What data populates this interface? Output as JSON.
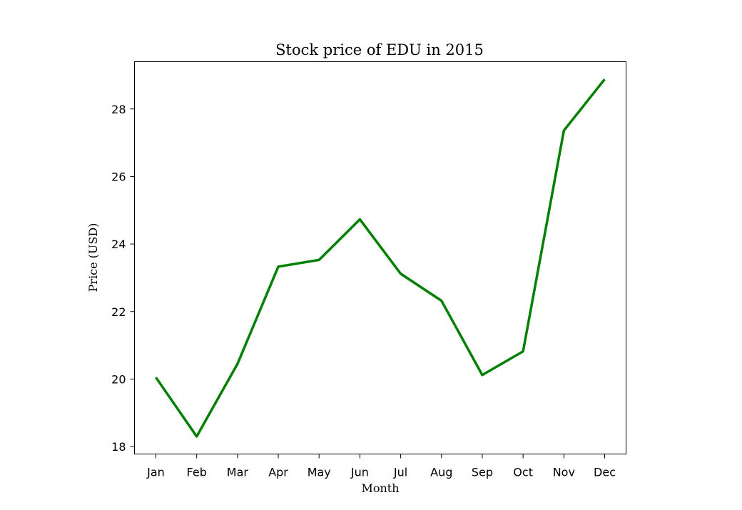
{
  "chart_data": {
    "type": "line",
    "title": "Stock price of EDU in 2015",
    "xlabel": "Month",
    "ylabel": "Price (USD)",
    "categories": [
      "Jan",
      "Feb",
      "Mar",
      "Apr",
      "May",
      "Jun",
      "Jul",
      "Aug",
      "Sep",
      "Oct",
      "Nov",
      "Dec"
    ],
    "series": [
      {
        "name": "EDU",
        "color": "#008000",
        "values": [
          20.05,
          18.3,
          20.45,
          23.33,
          23.53,
          24.73,
          23.12,
          22.32,
          20.12,
          20.82,
          27.36,
          28.88
        ]
      }
    ],
    "ylim": [
      17.78,
      29.4
    ],
    "yticks": [
      18,
      20,
      22,
      24,
      26,
      28
    ],
    "grid": false,
    "legend": "none"
  }
}
